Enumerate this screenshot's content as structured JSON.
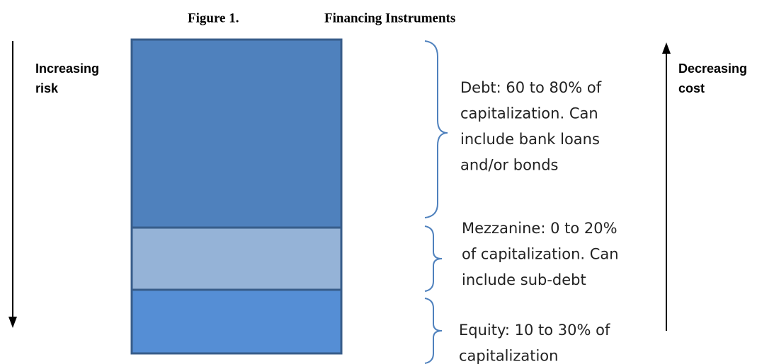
{
  "title": {
    "figure": "Figure 1.",
    "name": "Financing Instruments"
  },
  "left_label": [
    "Increasing",
    "risk"
  ],
  "right_label": [
    "Decreasing",
    "cost"
  ],
  "layers": [
    {
      "name": "Debt",
      "text": [
        "Debt: 60 to 80% of",
        "capitalization. Can",
        "include bank loans",
        "and/or bonds"
      ]
    },
    {
      "name": "Mezzanine",
      "text": [
        "Mezzanine: 0 to 20%",
        "of capitalization. Can",
        "include sub-debt"
      ]
    },
    {
      "name": "Equity",
      "text": [
        "Equity: 10 to 30% of",
        "capitalization"
      ]
    }
  ]
}
